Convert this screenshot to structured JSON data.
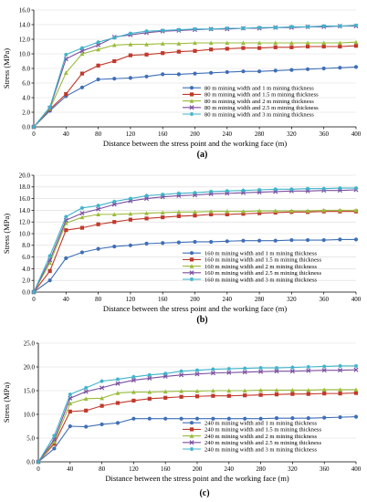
{
  "chart_data": [
    {
      "type": "line",
      "caption": "(a)",
      "xlabel": "Distance between the stress point and the working face (m)",
      "ylabel": "Stress (MPa)",
      "xlim": [
        0,
        400
      ],
      "ylim": [
        0,
        16
      ],
      "xticks": [
        0,
        40,
        80,
        120,
        160,
        200,
        240,
        280,
        320,
        360,
        400
      ],
      "yticks": [
        "0.0",
        "2.0",
        "4.0",
        "6.0",
        "8.0",
        "10.0",
        "12.0",
        "14.0",
        "16.0"
      ],
      "ytick_values": [
        0,
        2,
        4,
        6,
        8,
        10,
        12,
        14,
        16
      ],
      "legend_position": "bottom-right",
      "x": [
        0,
        20,
        40,
        60,
        80,
        100,
        120,
        140,
        160,
        180,
        200,
        220,
        240,
        260,
        280,
        300,
        320,
        340,
        360,
        380,
        400
      ],
      "series": [
        {
          "name": "80 m mining width and  1 m mining thickness",
          "color": "#3f6fb6",
          "values": [
            0,
            2.2,
            4.2,
            5.4,
            6.5,
            6.6,
            6.7,
            6.9,
            7.2,
            7.2,
            7.3,
            7.4,
            7.5,
            7.6,
            7.6,
            7.7,
            7.8,
            7.9,
            8.0,
            8.1,
            8.2
          ]
        },
        {
          "name": "80 m mining width and  1.5 m mining thickness",
          "color": "#c0392b",
          "values": [
            0,
            2.4,
            4.5,
            7.3,
            8.4,
            9.0,
            9.8,
            9.9,
            10.1,
            10.3,
            10.4,
            10.6,
            10.7,
            10.8,
            10.8,
            10.9,
            10.9,
            11.0,
            11.0,
            11.0,
            11.1
          ]
        },
        {
          "name": "80 m mining width and  2 m mining thickness",
          "color": "#9bbb3c",
          "values": [
            0,
            2.5,
            7.4,
            10.0,
            10.6,
            11.2,
            11.3,
            11.3,
            11.4,
            11.4,
            11.5,
            11.5,
            11.5,
            11.5,
            11.5,
            11.5,
            11.5,
            11.5,
            11.5,
            11.5,
            11.6
          ]
        },
        {
          "name": "80 m mining width and  2.5 m mining thickness",
          "color": "#7b4fa0",
          "values": [
            0,
            2.6,
            9.3,
            10.4,
            11.2,
            12.3,
            12.6,
            12.9,
            13.1,
            13.2,
            13.3,
            13.4,
            13.4,
            13.5,
            13.5,
            13.6,
            13.6,
            13.7,
            13.7,
            13.8,
            13.8
          ]
        },
        {
          "name": "80 m mining width and  3 m mining thickness",
          "color": "#3fb3c9",
          "values": [
            0,
            2.7,
            9.9,
            10.8,
            11.6,
            12.2,
            12.8,
            13.1,
            13.2,
            13.3,
            13.4,
            13.4,
            13.5,
            13.5,
            13.6,
            13.6,
            13.7,
            13.7,
            13.8,
            13.8,
            13.9
          ]
        }
      ]
    },
    {
      "type": "line",
      "caption": "(b)",
      "xlabel": "Distance between the stress point and the working face (m)",
      "ylabel": "Stress (MPa)",
      "xlim": [
        0,
        400
      ],
      "ylim": [
        0,
        20
      ],
      "xticks": [
        0,
        40,
        80,
        120,
        160,
        200,
        240,
        280,
        320,
        360,
        400
      ],
      "yticks": [
        "0.0",
        "2.0",
        "4.0",
        "6.0",
        "8.0",
        "10.0",
        "12.0",
        "14.0",
        "16.0",
        "18.0",
        "20.0"
      ],
      "ytick_values": [
        0,
        2,
        4,
        6,
        8,
        10,
        12,
        14,
        16,
        18,
        20
      ],
      "legend_position": "bottom-right",
      "x": [
        0,
        20,
        40,
        60,
        80,
        100,
        120,
        140,
        160,
        180,
        200,
        220,
        240,
        260,
        280,
        300,
        320,
        340,
        360,
        380,
        400
      ],
      "series": [
        {
          "name": "160 m mining width and  1 m mining thickness",
          "color": "#3f6fb6",
          "values": [
            0,
            2.0,
            5.8,
            6.8,
            7.4,
            7.8,
            8.0,
            8.3,
            8.4,
            8.5,
            8.6,
            8.6,
            8.7,
            8.8,
            8.8,
            8.8,
            8.9,
            8.9,
            8.9,
            9.0,
            9.0
          ]
        },
        {
          "name": "160 m mining width and  1.5 m mining thickness",
          "color": "#c0392b",
          "values": [
            0,
            3.6,
            10.6,
            11.0,
            11.6,
            12.0,
            12.4,
            12.6,
            12.8,
            13.0,
            13.1,
            13.3,
            13.3,
            13.4,
            13.5,
            13.6,
            13.7,
            13.7,
            13.8,
            13.8,
            13.8
          ]
        },
        {
          "name": "160 m mining width and  2 m mining thickness",
          "color": "#9bbb3c",
          "values": [
            0,
            5.0,
            11.8,
            12.8,
            13.3,
            13.3,
            13.4,
            13.5,
            13.6,
            13.7,
            13.7,
            13.8,
            13.8,
            13.8,
            13.9,
            13.9,
            13.9,
            13.9,
            14.0,
            14.0,
            14.0
          ]
        },
        {
          "name": "160 m mining width and  2.5 m mining thickness",
          "color": "#7b4fa0",
          "values": [
            0,
            5.5,
            12.3,
            13.5,
            14.2,
            15.0,
            15.6,
            16.0,
            16.3,
            16.5,
            16.6,
            16.8,
            16.9,
            17.0,
            17.1,
            17.2,
            17.3,
            17.3,
            17.4,
            17.4,
            17.5
          ]
        },
        {
          "name": "160 m mining width and  3 m mining thickness",
          "color": "#3fb3c9",
          "values": [
            0,
            6.2,
            12.9,
            14.4,
            14.8,
            15.5,
            16.0,
            16.5,
            16.7,
            16.9,
            17.0,
            17.2,
            17.3,
            17.4,
            17.5,
            17.6,
            17.6,
            17.7,
            17.7,
            17.8,
            17.8
          ]
        }
      ]
    },
    {
      "type": "line",
      "caption": "(c)",
      "xlabel": "Distance between the stress point and the working face (m)",
      "ylabel": "Stress (MPa)",
      "xlim": [
        0,
        400
      ],
      "ylim": [
        0,
        25
      ],
      "xticks": [
        0,
        40,
        80,
        120,
        160,
        200,
        240,
        280,
        320,
        360,
        400
      ],
      "yticks": [
        "0.0",
        "5.0",
        "10.0",
        "15.0",
        "20.0",
        "25.0"
      ],
      "ytick_values": [
        0,
        5,
        10,
        15,
        20,
        25
      ],
      "legend_position": "bottom-right",
      "x": [
        0,
        20,
        40,
        60,
        80,
        100,
        120,
        140,
        160,
        180,
        200,
        220,
        240,
        260,
        280,
        300,
        320,
        340,
        360,
        380,
        400
      ],
      "series": [
        {
          "name": "240 m mining width and  1 m mining thickness",
          "color": "#3f6fb6",
          "values": [
            0,
            2.8,
            7.5,
            7.4,
            7.9,
            8.2,
            9.1,
            9.1,
            9.1,
            9.1,
            9.1,
            9.1,
            9.1,
            9.1,
            9.1,
            9.2,
            9.2,
            9.2,
            9.3,
            9.4,
            9.5
          ]
        },
        {
          "name": "240 m mining width and  1.5 m mining thickness",
          "color": "#c0392b",
          "values": [
            0,
            3.8,
            10.6,
            10.8,
            11.8,
            12.4,
            12.9,
            13.3,
            13.5,
            13.7,
            13.8,
            13.9,
            13.9,
            14.0,
            14.1,
            14.2,
            14.3,
            14.3,
            14.4,
            14.4,
            14.5
          ]
        },
        {
          "name": "240 m mining width and  2 m mining thickness",
          "color": "#9bbb3c",
          "values": [
            0,
            4.2,
            12.3,
            13.3,
            13.4,
            14.5,
            14.7,
            14.7,
            14.8,
            14.9,
            14.9,
            15.0,
            15.0,
            15.0,
            15.1,
            15.1,
            15.1,
            15.1,
            15.2,
            15.2,
            15.2
          ]
        },
        {
          "name": "240 m mining width and  2.5 m mining thickness",
          "color": "#7b4fa0",
          "values": [
            0,
            4.7,
            13.4,
            14.8,
            15.6,
            16.5,
            17.2,
            17.6,
            18.0,
            18.3,
            18.5,
            18.7,
            18.8,
            18.9,
            19.0,
            19.1,
            19.1,
            19.2,
            19.3,
            19.3,
            19.4
          ]
        },
        {
          "name": "240 m mining width and  3 m mining thickness",
          "color": "#3fb3c9",
          "values": [
            0,
            5.5,
            14.2,
            15.6,
            17.0,
            17.4,
            17.9,
            18.3,
            18.6,
            19.1,
            19.3,
            19.5,
            19.6,
            19.7,
            19.8,
            19.8,
            19.9,
            20.0,
            20.1,
            20.2,
            20.2
          ]
        }
      ]
    }
  ]
}
